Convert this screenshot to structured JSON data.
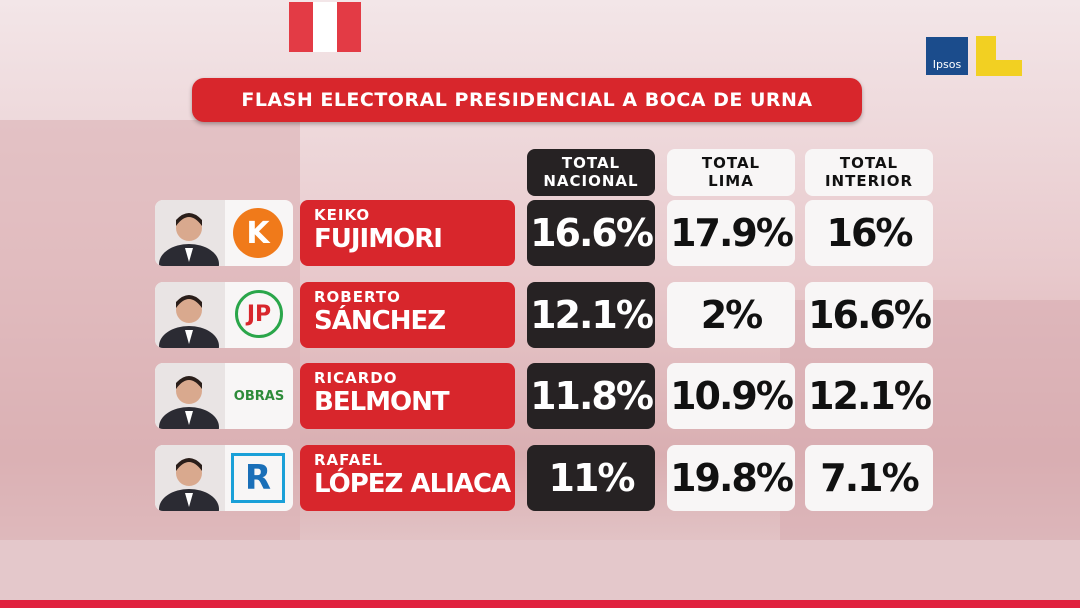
{
  "header": {
    "title": "FLASH ELECTORAL PRESIDENCIAL A BOCA DE URNA",
    "brand": "Ipsos"
  },
  "table": {
    "columns": [
      [
        "TOTAL",
        "NACIONAL"
      ],
      [
        "TOTAL",
        "LIMA"
      ],
      [
        "TOTAL",
        "INTERIOR"
      ]
    ],
    "rows": [
      {
        "first_name": "KEIKO",
        "last_name": "FUJIMORI",
        "party_logo": "K",
        "values": [
          "16.6%",
          "17.9%",
          "16%"
        ]
      },
      {
        "first_name": "ROBERTO",
        "last_name": "SÁNCHEZ",
        "party_logo": "JP",
        "values": [
          "12.1%",
          "2%",
          "16.6%"
        ]
      },
      {
        "first_name": "RICARDO",
        "last_name": "BELMONT",
        "party_logo": "OBRAS",
        "values": [
          "11.8%",
          "10.9%",
          "12.1%"
        ]
      },
      {
        "first_name": "RAFAEL",
        "last_name": "LÓPEZ ALIACA",
        "party_logo": "R",
        "values": [
          "11%",
          "19.8%",
          "7.1%"
        ]
      }
    ]
  }
}
